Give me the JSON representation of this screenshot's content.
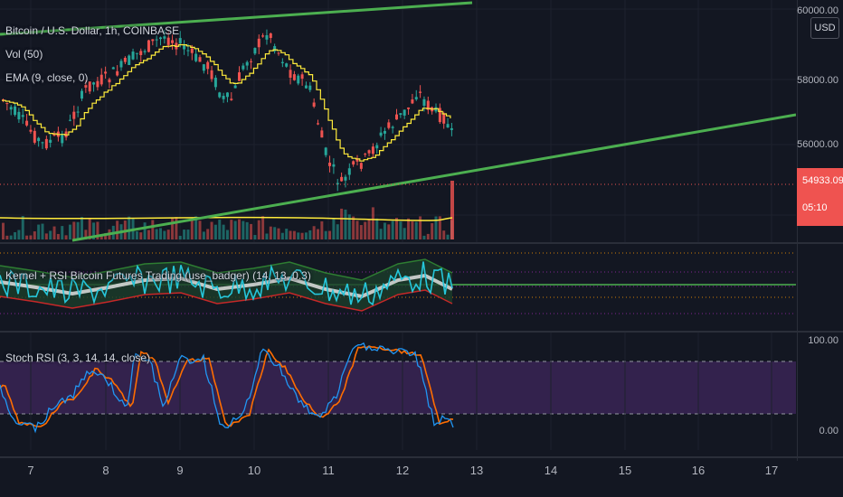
{
  "legends": {
    "symbol": "Bitcoin / U.S. Dollar, 1h, COINBASE",
    "vol": "Vol (50)",
    "ema": "EMA (9, close, 0)",
    "kernel": "Kernel + RSI Bitcoin Futures Trading (use_badger) (14, 13, 0.3)",
    "stoch": "Stoch RSI (3, 3, 14, 14, close)"
  },
  "price_axis": {
    "labels": [
      "60000.00",
      "58000.00",
      "56000.00"
    ],
    "currency": "USD",
    "last_price": "54933.09",
    "countdown": "05:10"
  },
  "stoch_axis": {
    "labels": [
      "100.00",
      "0.00"
    ]
  },
  "time_axis": {
    "labels": [
      "7",
      "8",
      "9",
      "10",
      "11",
      "12",
      "13",
      "14",
      "15",
      "16",
      "17"
    ]
  },
  "colors": {
    "background": "#131722",
    "up_candle": "#26a69a",
    "down_candle": "#ef5350",
    "ema": "#ffeb3b",
    "trendline": "#4caf50",
    "stoch_k": "#2196f3",
    "stoch_d": "#ff6d00",
    "stoch_band": "#4a2a6b",
    "kernel_rsi": "#26c6da",
    "kernel_mid": "#e0e0e0"
  },
  "chart_data": {
    "type": "candlestick",
    "x_labels": [
      "7",
      "8",
      "9",
      "10",
      "11",
      "12",
      "13",
      "14",
      "15",
      "16",
      "17"
    ],
    "y_ticks": [
      56000,
      58000,
      60000
    ],
    "last_price": 54933.09,
    "stoch_ylim": [
      0,
      100
    ]
  }
}
